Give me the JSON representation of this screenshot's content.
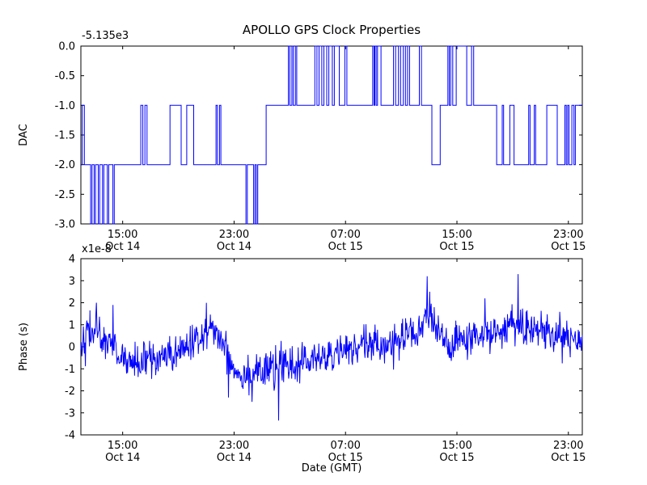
{
  "chart_data": [
    {
      "type": "line",
      "subplot": "top",
      "style": "step",
      "title": "APOLLO GPS Clock Properties",
      "ylabel": "DAC",
      "y_offset_label": "-5.135e3",
      "line_color": "#0000ff",
      "ylim": [
        -3.0,
        0.0
      ],
      "y_ticks": [
        "0.0",
        "-0.5",
        "-1.0",
        "-1.5",
        "-2.0",
        "-2.5",
        "-3.0"
      ],
      "x_range_hours": [
        0,
        36
      ],
      "x_ticks": [
        {
          "t": 3,
          "time": "15:00",
          "date": "Oct 14"
        },
        {
          "t": 11,
          "time": "23:00",
          "date": "Oct 14"
        },
        {
          "t": 19,
          "time": "07:00",
          "date": "Oct 15"
        },
        {
          "t": 27,
          "time": "15:00",
          "date": "Oct 15"
        },
        {
          "t": 35,
          "time": "23:00",
          "date": "Oct 15"
        }
      ],
      "step_points": [
        [
          0.0,
          -2
        ],
        [
          0.1,
          -1
        ],
        [
          0.25,
          -2
        ],
        [
          0.7,
          -3
        ],
        [
          0.8,
          -2
        ],
        [
          0.95,
          -3
        ],
        [
          1.05,
          -2
        ],
        [
          1.25,
          -3
        ],
        [
          1.35,
          -2
        ],
        [
          1.55,
          -3
        ],
        [
          1.65,
          -2
        ],
        [
          1.9,
          -3
        ],
        [
          2.0,
          -2
        ],
        [
          2.3,
          -3
        ],
        [
          2.4,
          -2
        ],
        [
          4.3,
          -1
        ],
        [
          4.45,
          -2
        ],
        [
          4.6,
          -1
        ],
        [
          4.75,
          -2
        ],
        [
          6.4,
          -1
        ],
        [
          7.2,
          -2
        ],
        [
          7.6,
          -1
        ],
        [
          8.1,
          -2
        ],
        [
          9.7,
          -1
        ],
        [
          9.8,
          -2
        ],
        [
          9.95,
          -1
        ],
        [
          10.05,
          -2
        ],
        [
          11.85,
          -3
        ],
        [
          11.95,
          -2
        ],
        [
          12.4,
          -3
        ],
        [
          12.5,
          -2
        ],
        [
          12.6,
          -3
        ],
        [
          12.7,
          -2
        ],
        [
          13.3,
          -1
        ],
        [
          14.9,
          0
        ],
        [
          15.0,
          -1
        ],
        [
          15.15,
          0
        ],
        [
          15.25,
          -1
        ],
        [
          15.4,
          0
        ],
        [
          15.5,
          -1
        ],
        [
          16.8,
          0
        ],
        [
          16.95,
          -1
        ],
        [
          17.1,
          0
        ],
        [
          17.3,
          -1
        ],
        [
          17.45,
          0
        ],
        [
          17.65,
          -1
        ],
        [
          17.8,
          0
        ],
        [
          18.05,
          -1
        ],
        [
          18.2,
          0
        ],
        [
          18.55,
          -1
        ],
        [
          18.95,
          0
        ],
        [
          19.1,
          -1
        ],
        [
          20.95,
          0
        ],
        [
          21.05,
          -1
        ],
        [
          21.1,
          0
        ],
        [
          21.2,
          -1
        ],
        [
          21.3,
          0
        ],
        [
          21.55,
          -1
        ],
        [
          22.45,
          0
        ],
        [
          22.6,
          -1
        ],
        [
          22.8,
          0
        ],
        [
          22.95,
          -1
        ],
        [
          23.15,
          0
        ],
        [
          23.3,
          -1
        ],
        [
          23.45,
          0
        ],
        [
          23.6,
          -1
        ],
        [
          24.3,
          0
        ],
        [
          24.45,
          -1
        ],
        [
          25.2,
          -2
        ],
        [
          25.8,
          -1
        ],
        [
          26.35,
          0
        ],
        [
          26.45,
          -1
        ],
        [
          26.55,
          0
        ],
        [
          26.7,
          -1
        ],
        [
          26.95,
          0
        ],
        [
          27.7,
          -1
        ],
        [
          28.05,
          0
        ],
        [
          28.2,
          -1
        ],
        [
          29.85,
          -2
        ],
        [
          30.25,
          -1
        ],
        [
          30.35,
          -2
        ],
        [
          30.8,
          -1
        ],
        [
          31.1,
          -2
        ],
        [
          32.15,
          -1
        ],
        [
          32.25,
          -2
        ],
        [
          32.55,
          -1
        ],
        [
          32.65,
          -2
        ],
        [
          33.45,
          -1
        ],
        [
          34.2,
          -2
        ],
        [
          34.75,
          -1
        ],
        [
          34.85,
          -2
        ],
        [
          34.95,
          -1
        ],
        [
          35.05,
          -2
        ],
        [
          35.25,
          -1
        ],
        [
          35.4,
          -2
        ],
        [
          35.5,
          -1
        ]
      ]
    },
    {
      "type": "line",
      "subplot": "bottom",
      "style": "noisy",
      "ylabel": "Phase (s)",
      "y_multiplier_label": "x1e-8",
      "xlabel": "Date (GMT)",
      "line_color": "#0000ff",
      "ylim": [
        -4,
        4
      ],
      "y_ticks": [
        "4",
        "3",
        "2",
        "1",
        "0",
        "-1",
        "-2",
        "-3",
        "-4"
      ],
      "x_range_hours": [
        0,
        36
      ],
      "x_ticks": [
        {
          "t": 3,
          "time": "15:00",
          "date": "Oct 14"
        },
        {
          "t": 11,
          "time": "23:00",
          "date": "Oct 14"
        },
        {
          "t": 19,
          "time": "07:00",
          "date": "Oct 15"
        },
        {
          "t": 27,
          "time": "15:00",
          "date": "Oct 15"
        },
        {
          "t": 35,
          "time": "23:00",
          "date": "Oct 15"
        }
      ],
      "baseline": [
        [
          0,
          0.3
        ],
        [
          0.5,
          0.6
        ],
        [
          1,
          0.7
        ],
        [
          1.5,
          0.4
        ],
        [
          2,
          0.3
        ],
        [
          2.5,
          -0.2
        ],
        [
          3,
          -0.5
        ],
        [
          3.5,
          -0.7
        ],
        [
          4,
          -0.8
        ],
        [
          4.5,
          -0.6
        ],
        [
          5,
          -0.5
        ],
        [
          5.5,
          -0.7
        ],
        [
          6,
          -0.5
        ],
        [
          6.5,
          -0.4
        ],
        [
          7,
          -0.3
        ],
        [
          7.5,
          -0.1
        ],
        [
          8,
          0.2
        ],
        [
          8.5,
          0.6
        ],
        [
          9,
          0.9
        ],
        [
          9.5,
          0.7
        ],
        [
          10,
          0.4
        ],
        [
          10.5,
          -0.2
        ],
        [
          11,
          -1.0
        ],
        [
          11.5,
          -1.2
        ],
        [
          12,
          -1.2
        ],
        [
          12.5,
          -1.1
        ],
        [
          13,
          -1.1
        ],
        [
          13.5,
          -1.0
        ],
        [
          14,
          -1.1
        ],
        [
          14.5,
          -0.9
        ],
        [
          15,
          -0.8
        ],
        [
          15.5,
          -0.8
        ],
        [
          16,
          -0.7
        ],
        [
          16.5,
          -0.6
        ],
        [
          17,
          -0.5
        ],
        [
          17.5,
          -0.5
        ],
        [
          18,
          -0.4
        ],
        [
          18.5,
          -0.3
        ],
        [
          19,
          -0.2
        ],
        [
          19.5,
          -0.1
        ],
        [
          20,
          0.0
        ],
        [
          20.5,
          0.1
        ],
        [
          21,
          0.2
        ],
        [
          21.5,
          0.1
        ],
        [
          22,
          0.1
        ],
        [
          22.5,
          0.2
        ],
        [
          23,
          0.3
        ],
        [
          23.5,
          0.4
        ],
        [
          24,
          0.5
        ],
        [
          24.5,
          0.9
        ],
        [
          24.8,
          1.4
        ],
        [
          25.1,
          1.3
        ],
        [
          25.5,
          0.9
        ],
        [
          26,
          0.3
        ],
        [
          26.5,
          -0.2
        ],
        [
          27,
          0.1
        ],
        [
          27.5,
          0.3
        ],
        [
          28,
          0.3
        ],
        [
          28.5,
          0.4
        ],
        [
          29,
          0.5
        ],
        [
          29.5,
          0.6
        ],
        [
          30,
          0.8
        ],
        [
          30.5,
          0.9
        ],
        [
          31,
          0.9
        ],
        [
          31.5,
          1.0
        ],
        [
          32,
          0.8
        ],
        [
          32.5,
          0.8
        ],
        [
          33,
          0.7
        ],
        [
          33.5,
          0.7
        ],
        [
          34,
          0.6
        ],
        [
          34.5,
          0.4
        ],
        [
          35,
          0.3
        ],
        [
          35.5,
          0.3
        ],
        [
          36,
          0.2
        ]
      ],
      "noise_std": 0.42,
      "noise_seed": 42,
      "points_count": 1000,
      "spikes": [
        [
          1.1,
          2.0
        ],
        [
          2.3,
          1.9
        ],
        [
          10.6,
          -2.3
        ],
        [
          12.3,
          -2.5
        ],
        [
          14.2,
          -3.35
        ],
        [
          24.85,
          3.2
        ],
        [
          25.05,
          2.5
        ],
        [
          29.0,
          2.2
        ],
        [
          31.4,
          3.3
        ]
      ]
    }
  ]
}
